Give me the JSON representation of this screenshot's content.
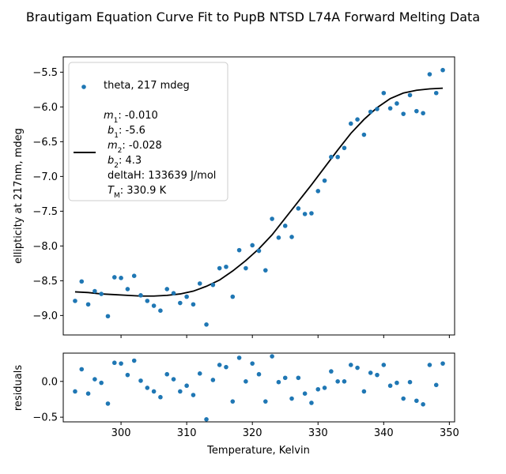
{
  "chart_data": [
    {
      "type": "scatter",
      "title": "Brautigam Equation Curve Fit to PupB NTSD L74A Forward Melting Data",
      "xlabel": "",
      "ylabel": "ellipticity at 217nm, mdeg",
      "xlim": [
        291.2,
        350.8
      ],
      "ylim": [
        -9.28,
        -5.28
      ],
      "yticks": [
        -9.0,
        -8.5,
        -8.0,
        -7.5,
        -7.0,
        -6.5,
        -6.0,
        -5.5
      ],
      "ytick_labels": [
        "−9.0",
        "−8.5",
        "−8.0",
        "−7.5",
        "−7.0",
        "−6.5",
        "−6.0",
        "−5.5"
      ],
      "grid": false,
      "legend_position": "top-left",
      "series": [
        {
          "name": "theta, 217 mdeg",
          "marker": "point",
          "color": "#1f77b4",
          "x": [
            293,
            294,
            295,
            296,
            297,
            298,
            299,
            300,
            301,
            302,
            303,
            304,
            305,
            306,
            307,
            308,
            309,
            310,
            311,
            312,
            313,
            314,
            315,
            316,
            317,
            318,
            319,
            320,
            321,
            322,
            323,
            324,
            325,
            326,
            327,
            328,
            329,
            330,
            331,
            332,
            333,
            334,
            335,
            336,
            337,
            338,
            339,
            340,
            341,
            342,
            343,
            344,
            345,
            346,
            347,
            348,
            349
          ],
          "y": [
            -8.79,
            -8.51,
            -8.84,
            -8.65,
            -8.69,
            -9.01,
            -8.45,
            -8.46,
            -8.62,
            -8.43,
            -8.71,
            -8.79,
            -8.86,
            -8.93,
            -8.62,
            -8.68,
            -8.82,
            -8.73,
            -8.84,
            -8.54,
            -9.13,
            -8.56,
            -8.32,
            -8.3,
            -8.73,
            -8.06,
            -8.32,
            -7.99,
            -8.07,
            -8.35,
            -7.61,
            -7.88,
            -7.71,
            -7.87,
            -7.46,
            -7.54,
            -7.53,
            -7.21,
            -7.06,
            -6.72,
            -6.72,
            -6.59,
            -6.24,
            -6.18,
            -6.4,
            -6.07,
            -6.03,
            -5.8,
            -6.02,
            -5.95,
            -6.1,
            -5.83,
            -6.06,
            -6.09,
            -5.53,
            -5.8,
            -5.47
          ]
        },
        {
          "name": "",
          "type": "line",
          "color": "#000000",
          "x": [
            293,
            295,
            297,
            299,
            301,
            303,
            305,
            307,
            309,
            311,
            313,
            315,
            317,
            319,
            321,
            323,
            325,
            327,
            329,
            331,
            333,
            335,
            337,
            339,
            341,
            343,
            345,
            347,
            349
          ],
          "y": [
            -8.66,
            -8.67,
            -8.69,
            -8.7,
            -8.71,
            -8.72,
            -8.72,
            -8.71,
            -8.69,
            -8.65,
            -8.58,
            -8.49,
            -8.36,
            -8.21,
            -8.04,
            -7.84,
            -7.6,
            -7.36,
            -7.12,
            -6.87,
            -6.62,
            -6.38,
            -6.18,
            -6.01,
            -5.88,
            -5.8,
            -5.76,
            -5.74,
            -5.73
          ]
        }
      ],
      "legend": {
        "entries": [
          "theta, 217 mdeg"
        ],
        "fit_lines": [
          {
            "label": "m",
            "sub": "1",
            "value": ": -0.010"
          },
          {
            "label": "b",
            "sub": "1",
            "value": ": -5.6"
          },
          {
            "label": "m",
            "sub": "2",
            "value": ": -0.028"
          },
          {
            "label": "b",
            "sub": "2",
            "value": ": 4.3"
          },
          {
            "label": "",
            "sub": "",
            "value": "deltaH: 133639 J/mol"
          },
          {
            "label": "T",
            "sub": "M",
            "value": ": 330.9 K"
          }
        ]
      }
    },
    {
      "type": "scatter",
      "title": "",
      "xlabel": "Temperature, Kelvin",
      "ylabel": "residuals",
      "xlim": [
        291.2,
        350.8
      ],
      "ylim": [
        -0.565,
        0.395
      ],
      "xticks": [
        300,
        310,
        320,
        330,
        340,
        350
      ],
      "xtick_labels": [
        "300",
        "310",
        "320",
        "330",
        "340",
        "350"
      ],
      "yticks": [
        -0.5,
        0.0
      ],
      "ytick_labels": [
        "−0.5",
        "0.0"
      ],
      "grid": false,
      "series": [
        {
          "name": "",
          "marker": "point",
          "color": "#1f77b4",
          "x": [
            293,
            294,
            295,
            296,
            297,
            298,
            299,
            300,
            301,
            302,
            303,
            304,
            305,
            306,
            307,
            308,
            309,
            310,
            311,
            312,
            313,
            314,
            315,
            316,
            317,
            318,
            319,
            320,
            321,
            322,
            323,
            324,
            325,
            326,
            327,
            328,
            329,
            330,
            331,
            332,
            333,
            334,
            335,
            336,
            337,
            338,
            339,
            340,
            341,
            342,
            343,
            344,
            345,
            346,
            347,
            348,
            349
          ],
          "y": [
            -0.14,
            0.17,
            -0.17,
            0.03,
            -0.02,
            -0.31,
            0.26,
            0.25,
            0.09,
            0.29,
            0.01,
            -0.09,
            -0.14,
            -0.22,
            0.1,
            0.03,
            -0.14,
            -0.06,
            -0.19,
            0.11,
            -0.53,
            0.02,
            0.23,
            0.2,
            -0.28,
            0.33,
            0.0,
            0.25,
            0.1,
            -0.28,
            0.35,
            -0.01,
            0.05,
            -0.24,
            0.05,
            -0.17,
            -0.3,
            -0.11,
            -0.09,
            0.14,
            0.0,
            0.0,
            0.23,
            0.19,
            -0.14,
            0.12,
            0.09,
            0.23,
            -0.06,
            -0.02,
            -0.24,
            -0.01,
            -0.27,
            -0.32,
            0.23,
            -0.05,
            0.25
          ]
        }
      ]
    }
  ]
}
